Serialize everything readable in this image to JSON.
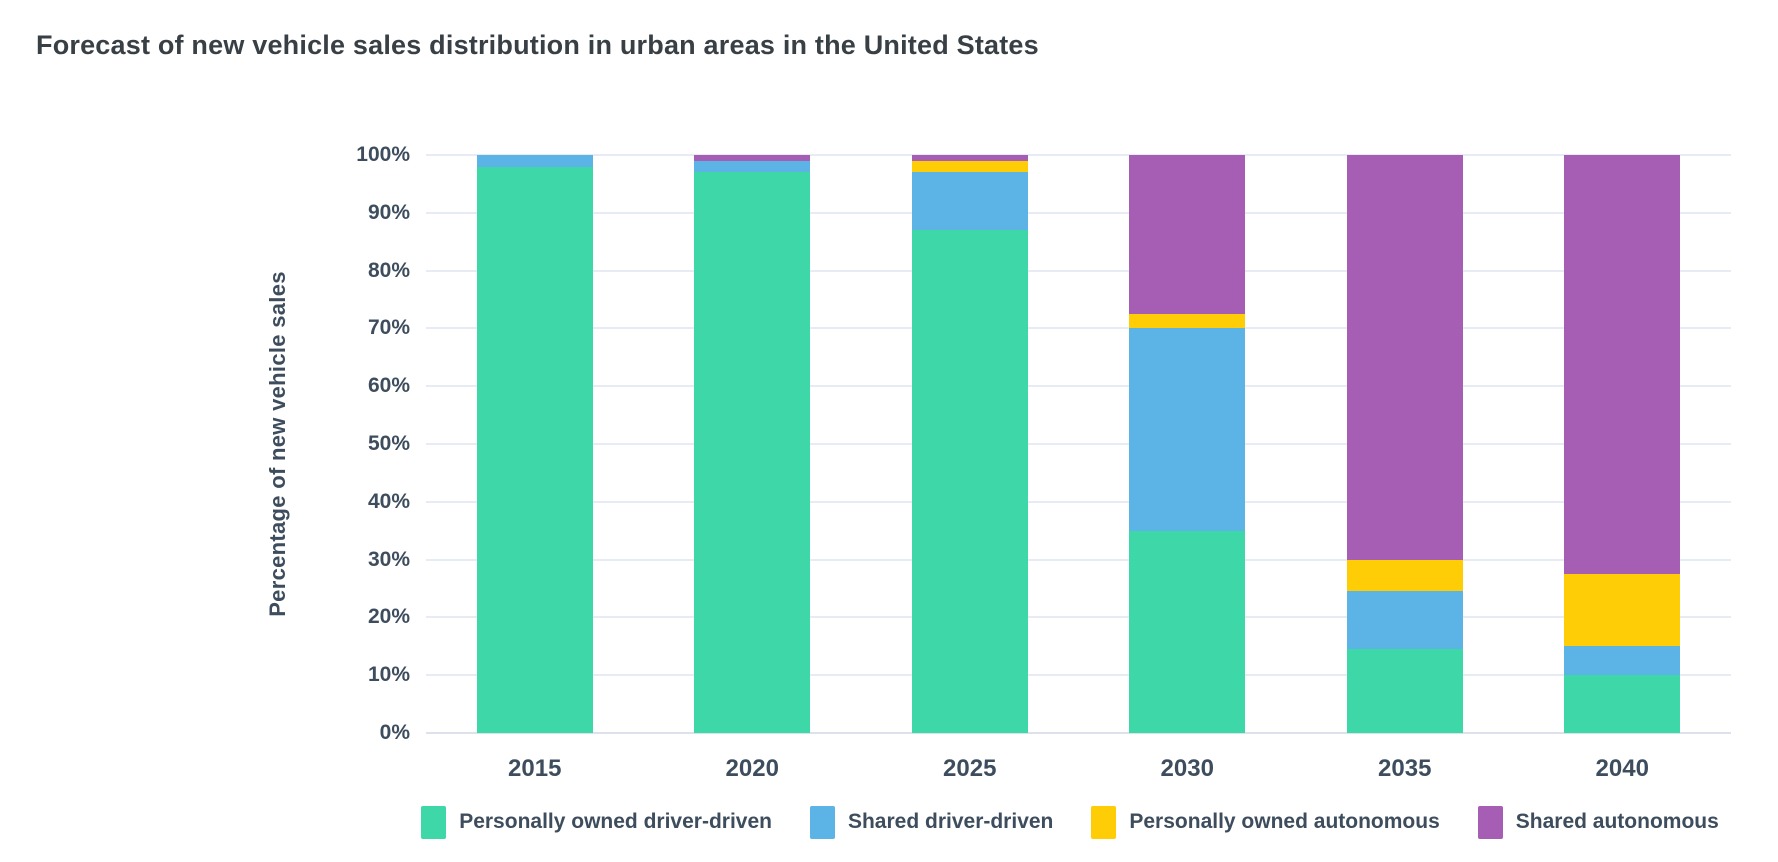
{
  "header": {
    "title": "Forecast of new vehicle sales distribution in urban areas in the United States"
  },
  "colors": {
    "background": "#ffffff",
    "title_text": "#383f45",
    "axis_text": "#3e4d5d",
    "gridline": "#e7ebf4",
    "baseline": "#dce1eb",
    "teal": "#3ed8a8",
    "blue": "#5cb3e5",
    "yellow": "#fecd06",
    "purple": "#a65eb4"
  },
  "chart_data": {
    "type": "bar",
    "stacked": true,
    "title": "Forecast of new vehicle sales distribution in urban areas in the United States",
    "categories": [
      "2015",
      "2020",
      "2025",
      "2030",
      "2035",
      "2040"
    ],
    "series": [
      {
        "name": "Personally owned driver-driven",
        "color": "#3ed8a8",
        "values": [
          98,
          97,
          87,
          35,
          14.5,
          10
        ]
      },
      {
        "name": "Shared driver-driven",
        "color": "#5cb3e5",
        "values": [
          2,
          2,
          10,
          35,
          10,
          5
        ]
      },
      {
        "name": "Personally owned autonomous",
        "color": "#fecd06",
        "values": [
          0,
          0,
          2,
          2.5,
          5.5,
          12.5
        ]
      },
      {
        "name": "Shared autonomous",
        "color": "#a65eb4",
        "values": [
          0,
          1,
          1,
          27.5,
          70,
          72.5
        ]
      }
    ],
    "xlabel": "",
    "ylabel": "Percentage of new vehicle sales",
    "ylim": [
      0,
      100
    ],
    "ytick_step": 10,
    "ytick_suffix": "%",
    "grid": true,
    "legend_position": "bottom"
  }
}
